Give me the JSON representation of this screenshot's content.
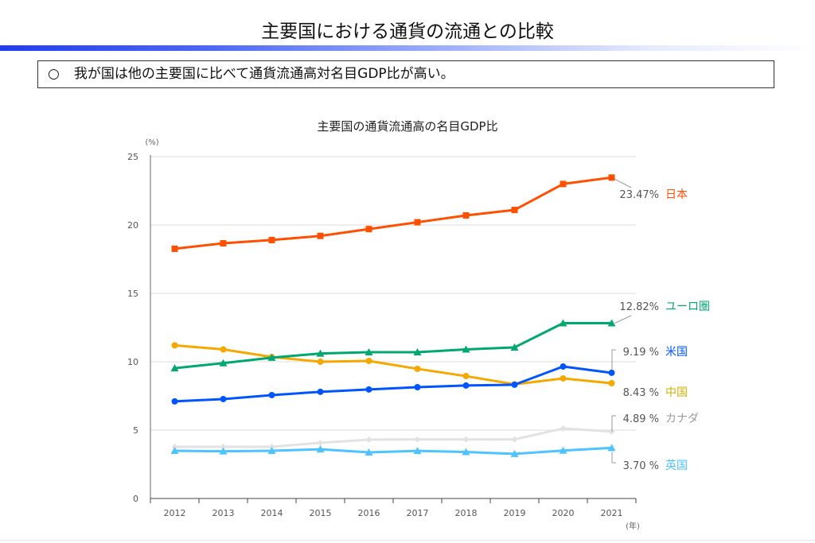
{
  "header": {
    "title": "主要国における通貨の流通との比較",
    "summary_bullet": "○",
    "summary": "我が国は他の主要国に比べて通貨流通高対名目GDP比が高い。"
  },
  "chart_data": {
    "type": "line",
    "title": "主要国の通貨流通高の名目GDP比",
    "ylabel": "(%)",
    "xlabel": "(年)",
    "ylim": [
      0,
      25
    ],
    "yticks": [
      "0",
      "5",
      "10",
      "15",
      "20",
      "25"
    ],
    "categories": [
      "2012",
      "2013",
      "2014",
      "2015",
      "2016",
      "2017",
      "2018",
      "2019",
      "2020",
      "2021"
    ],
    "grid": true,
    "series": [
      {
        "name": "日本",
        "end_label": "23.47%",
        "color": "#ff4f00",
        "label_color": "#ff4f00",
        "marker": "square",
        "values": [
          18.26,
          18.66,
          18.9,
          19.2,
          19.7,
          20.2,
          20.7,
          21.1,
          23.0,
          23.47
        ]
      },
      {
        "name": "ユーロ圏",
        "end_label": "12.82%",
        "color": "#00a870",
        "label_color": "#00a870",
        "marker": "triangle",
        "values": [
          9.53,
          9.9,
          10.3,
          10.6,
          10.7,
          10.7,
          10.9,
          11.05,
          12.82,
          12.82
        ]
      },
      {
        "name": "米国",
        "end_label": "9.19 %",
        "color": "#0055ff",
        "label_color": "#0055ff",
        "marker": "circle",
        "values": [
          7.1,
          7.27,
          7.56,
          7.8,
          7.97,
          8.14,
          8.26,
          8.32,
          9.65,
          9.19
        ]
      },
      {
        "name": "中国",
        "end_label": "8.43 %",
        "color": "#f5a800",
        "label_color": "#d4b000",
        "marker": "circle",
        "values": [
          11.2,
          10.9,
          10.35,
          10.0,
          10.06,
          9.48,
          8.95,
          8.35,
          8.78,
          8.43
        ]
      },
      {
        "name": "カナダ",
        "end_label": "4.89 %",
        "color": "#e2e2e2",
        "label_color": "#9a9a9a",
        "marker": "diamond",
        "values": [
          3.78,
          3.78,
          3.78,
          4.07,
          4.3,
          4.32,
          4.32,
          4.32,
          5.12,
          4.89
        ]
      },
      {
        "name": "英国",
        "end_label": "3.70 %",
        "color": "#4dc3ff",
        "label_color": "#4dc3ff",
        "marker": "triangle",
        "values": [
          3.49,
          3.45,
          3.49,
          3.6,
          3.37,
          3.48,
          3.4,
          3.26,
          3.5,
          3.7
        ]
      }
    ]
  }
}
